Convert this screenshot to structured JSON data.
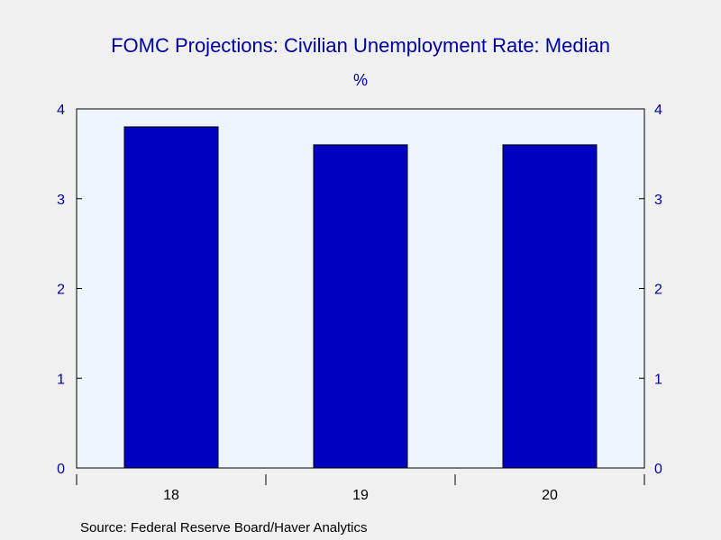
{
  "chart_data": {
    "type": "bar",
    "title": "FOMC Projections: Civilian Unemployment Rate: Median",
    "unit": "%",
    "categories": [
      "18",
      "19",
      "20"
    ],
    "series": [
      {
        "values": [
          3.8,
          3.6,
          3.6
        ]
      }
    ],
    "ylim": [
      0,
      4
    ],
    "yticks": [
      "0",
      "1",
      "2",
      "3",
      "4"
    ],
    "dual_y_axis": true,
    "grid": false,
    "legend": "none",
    "source": "Source:  Federal Reserve Board/Haver Analytics",
    "colors": {
      "bar": "#0000c0",
      "bar_edge": "#000000",
      "plot_bg": "#eef4fc",
      "page_bg": "#f0f0f0",
      "text": "#0000a0"
    }
  }
}
